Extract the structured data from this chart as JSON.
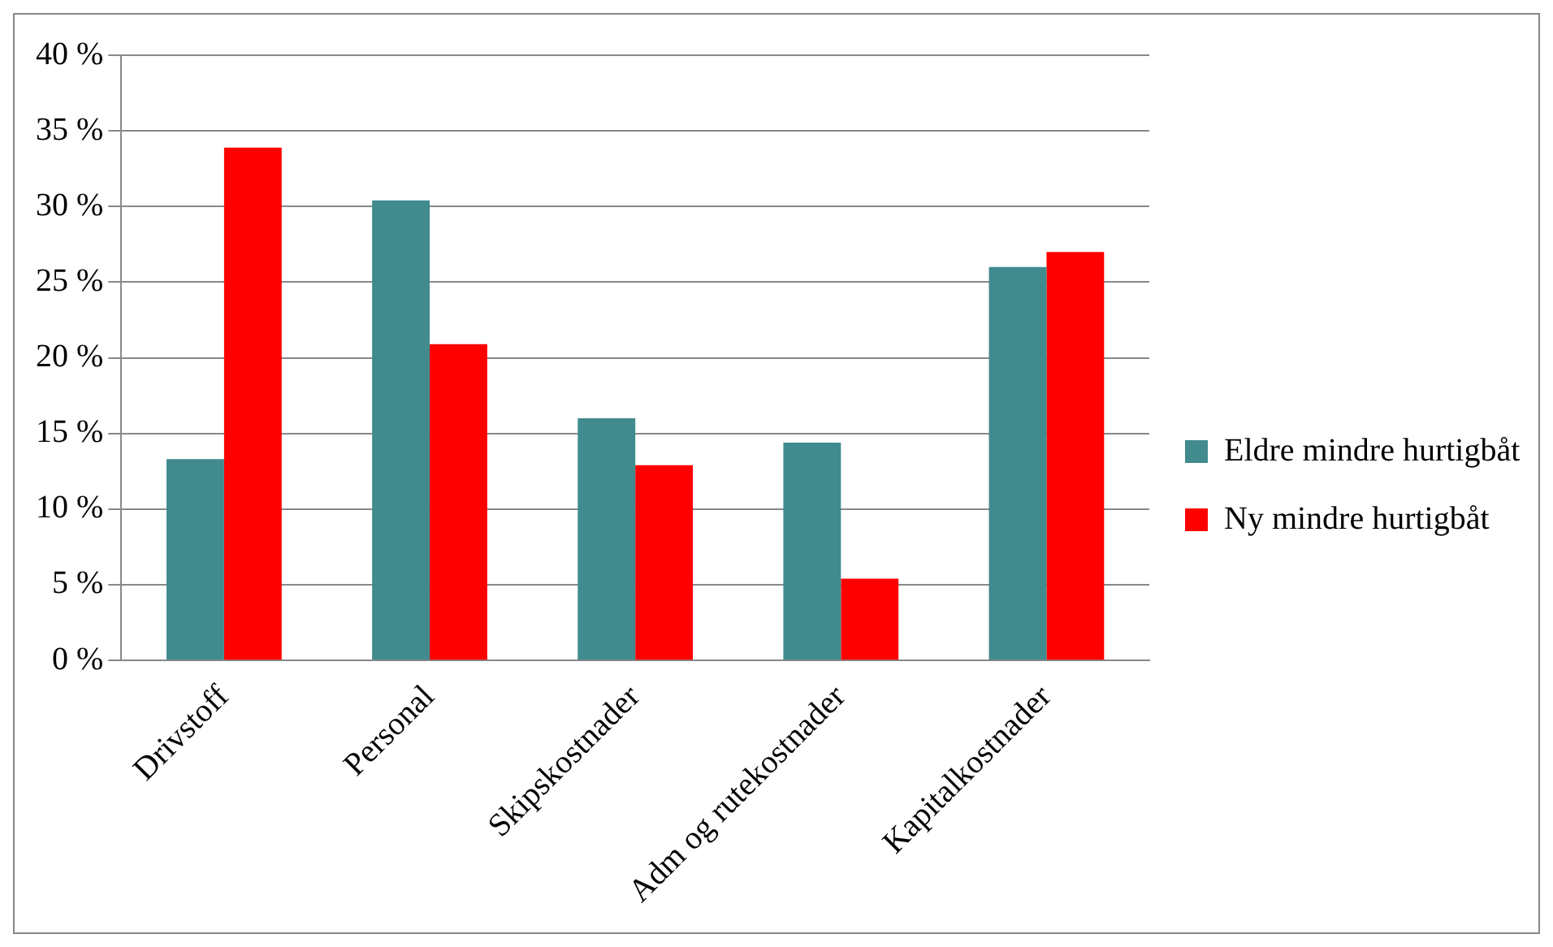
{
  "chart_data": {
    "type": "bar",
    "categories": [
      "Drivstoff",
      "Personal",
      "Skipskostnader",
      "Adm og rutekostnader",
      "Kapitalkostnader"
    ],
    "series": [
      {
        "name": "Eldre mindre hurtigbåt",
        "color": "#418a8e",
        "values": [
          13.3,
          30.4,
          16.0,
          14.4,
          26.0
        ]
      },
      {
        "name": "Ny mindre hurtigbåt",
        "color": "#ff0000",
        "values": [
          33.9,
          20.9,
          12.9,
          5.4,
          27.0
        ]
      }
    ],
    "ylim": [
      0,
      40
    ],
    "yticks": [
      {
        "value": 0,
        "label": "0 %"
      },
      {
        "value": 5,
        "label": "5 %"
      },
      {
        "value": 10,
        "label": "10 %"
      },
      {
        "value": 15,
        "label": "15 %"
      },
      {
        "value": 20,
        "label": "20 %"
      },
      {
        "value": 25,
        "label": "25 %"
      },
      {
        "value": 30,
        "label": "30 %"
      },
      {
        "value": 35,
        "label": "35 %"
      },
      {
        "value": 40,
        "label": "40 %"
      }
    ],
    "grid": "y",
    "legend": "right"
  }
}
